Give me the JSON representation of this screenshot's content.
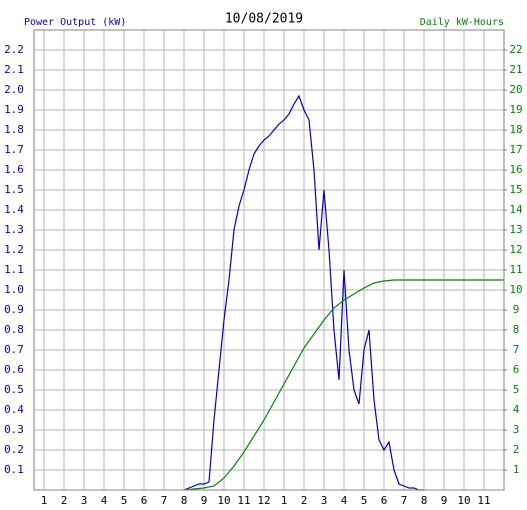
{
  "chart_data": {
    "type": "line",
    "title": "10/08/2019",
    "xlim": [
      0.5,
      24
    ],
    "xticks": [
      1,
      2,
      3,
      4,
      5,
      6,
      7,
      8,
      9,
      10,
      11,
      12,
      {
        "value": 13,
        "label": "1"
      },
      {
        "value": 14,
        "label": "2"
      },
      {
        "value": 15,
        "label": "3"
      },
      {
        "value": 16,
        "label": "4"
      },
      {
        "value": 17,
        "label": "5"
      },
      {
        "value": 18,
        "label": "6"
      },
      {
        "value": 19,
        "label": "7"
      },
      {
        "value": 20,
        "label": "8"
      },
      {
        "value": 21,
        "label": "9"
      },
      {
        "value": 22,
        "label": "10"
      },
      {
        "value": 23,
        "label": "11"
      }
    ],
    "ylim": [
      0,
      2.3
    ],
    "yticks": [
      0.1,
      0.2,
      0.3,
      0.4,
      0.5,
      0.6,
      0.7,
      0.8,
      0.9,
      {
        "value": 1,
        "label": "1.0"
      },
      1.1,
      1.2,
      1.3,
      1.4,
      1.5,
      1.6,
      1.7,
      1.8,
      1.9,
      {
        "value": 2,
        "label": "2.0"
      },
      2.1,
      2.2
    ],
    "y2lim": [
      0,
      23
    ],
    "y2ticks": [
      1,
      2,
      3,
      4,
      5,
      6,
      7,
      8,
      9,
      10,
      11,
      12,
      13,
      14,
      15,
      16,
      17,
      18,
      19,
      20,
      21,
      22
    ],
    "grid": true,
    "series": [
      {
        "name": "Power Output (kW)",
        "color": "#0000cc",
        "x": [
          8,
          8.25,
          8.5,
          8.75,
          9,
          9.25,
          9.5,
          9.75,
          10,
          10.25,
          10.5,
          10.75,
          11,
          11.25,
          11.5,
          11.75,
          12,
          12.25,
          12.5,
          12.75,
          13,
          13.25,
          13.5,
          13.75,
          14,
          14.25,
          14.5,
          14.75,
          15,
          15.25,
          15.5,
          15.75,
          16,
          16.25,
          16.5,
          16.75,
          17,
          17.25,
          17.5,
          17.75,
          18,
          18.25,
          18.5,
          18.75,
          19,
          19.25,
          19.5,
          19.75,
          20
        ],
        "values": [
          0,
          0.01,
          0.02,
          0.03,
          0.03,
          0.04,
          0.35,
          0.6,
          0.85,
          1.05,
          1.3,
          1.42,
          1.5,
          1.6,
          1.68,
          1.72,
          1.75,
          1.77,
          1.8,
          1.83,
          1.85,
          1.88,
          1.93,
          1.97,
          1.9,
          1.85,
          1.6,
          1.2,
          1.5,
          1.2,
          0.8,
          0.55,
          1.1,
          0.7,
          0.5,
          0.43,
          0.7,
          0.8,
          0.45,
          0.25,
          0.2,
          0.24,
          0.1,
          0.03,
          0.02,
          0.01,
          0.01,
          0,
          0
        ]
      },
      {
        "name": "Daily kW-Hours",
        "color": "#008800",
        "axis": "y2",
        "x": [
          8,
          8.5,
          9,
          9.5,
          10,
          10.5,
          11,
          11.5,
          12,
          12.5,
          13,
          13.5,
          14,
          14.5,
          15,
          15.5,
          16,
          16.5,
          17,
          17.5,
          18,
          18.5,
          19,
          24
        ],
        "values": [
          0,
          0.05,
          0.1,
          0.2,
          0.6,
          1.2,
          1.9,
          2.7,
          3.5,
          4.4,
          5.3,
          6.2,
          7.1,
          7.8,
          8.5,
          9.1,
          9.5,
          9.8,
          10.1,
          10.35,
          10.45,
          10.5,
          10.5,
          10.5
        ]
      }
    ]
  }
}
